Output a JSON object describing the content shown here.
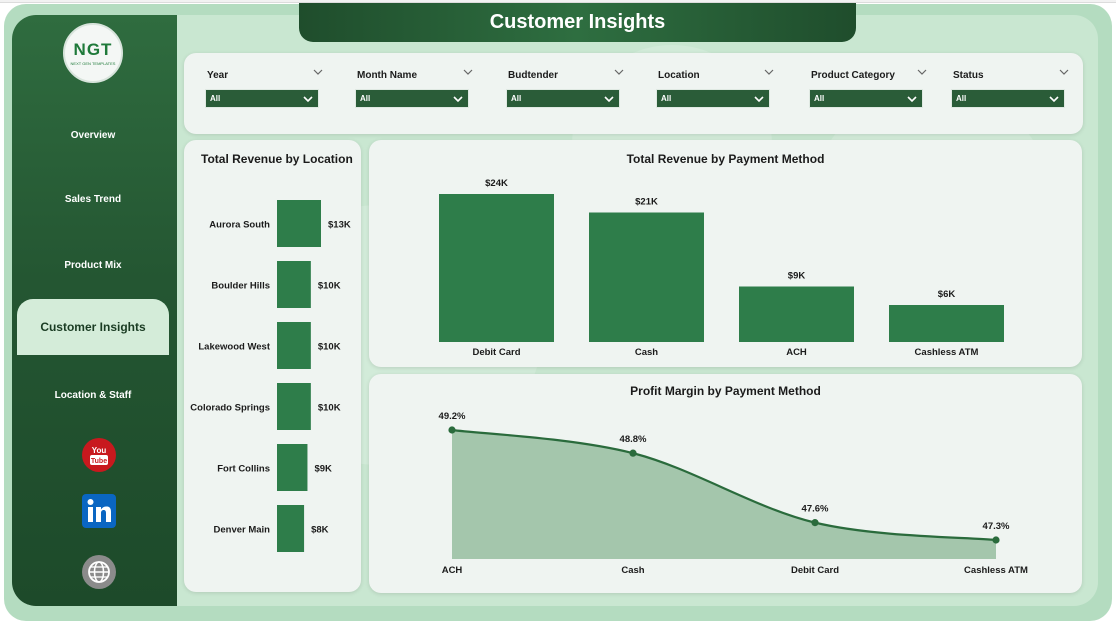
{
  "app_title": "Customer Insights",
  "logo": {
    "mark": "NGT",
    "sub": "NEXT GEN TEMPLATES"
  },
  "nav": [
    {
      "label": "Overview"
    },
    {
      "label": "Sales Trend"
    },
    {
      "label": "Product Mix"
    },
    {
      "label": "Customer Insights",
      "active": true
    },
    {
      "label": "Location & Staff"
    }
  ],
  "social": [
    {
      "icon": "youtube-icon",
      "label": "You Tube"
    },
    {
      "icon": "linkedin-icon",
      "label": "in"
    },
    {
      "icon": "globe-icon"
    }
  ],
  "filters": [
    {
      "label": "Year",
      "value": "All"
    },
    {
      "label": "Month Name",
      "value": "All"
    },
    {
      "label": "Budtender",
      "value": "All"
    },
    {
      "label": "Location",
      "value": "All"
    },
    {
      "label": "Product Category",
      "value": "All"
    },
    {
      "label": "Status",
      "value": "All"
    }
  ],
  "colors": {
    "accent": "#2e7d4a",
    "dark_green": "#1f4d2c",
    "area_fill": "#9fc3a8",
    "line": "#2a6b3c"
  },
  "chart_data": [
    {
      "type": "bar",
      "orientation": "horizontal",
      "title": "Total Revenue by Location",
      "categories": [
        "Aurora South",
        "Boulder Hills",
        "Lakewood West",
        "Colorado Springs",
        "Fort Collins",
        "Denver Main"
      ],
      "values": [
        13000,
        10000,
        10000,
        10000,
        9000,
        8000
      ],
      "data_labels": [
        "$13K",
        "$10K",
        "$10K",
        "$10K",
        "$9K",
        "$8K"
      ]
    },
    {
      "type": "bar",
      "title": "Total Revenue by Payment Method",
      "categories": [
        "Debit Card",
        "Cash",
        "ACH",
        "Cashless ATM"
      ],
      "values": [
        24000,
        21000,
        9000,
        6000
      ],
      "data_labels": [
        "$24K",
        "$21K",
        "$9K",
        "$6K"
      ]
    },
    {
      "type": "area",
      "title": "Profit Margin by Payment Method",
      "categories": [
        "ACH",
        "Cash",
        "Debit Card",
        "Cashless ATM"
      ],
      "values": [
        49.2,
        48.8,
        47.6,
        47.3
      ],
      "data_labels": [
        "49.2%",
        "48.8%",
        "47.6%",
        "47.3%"
      ]
    }
  ]
}
